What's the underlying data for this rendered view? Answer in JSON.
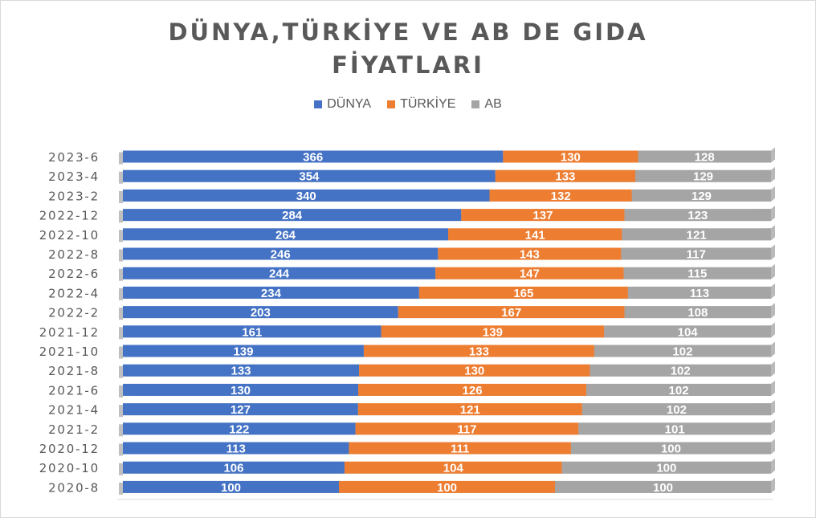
{
  "chart_data": {
    "type": "bar",
    "orientation": "horizontal",
    "stacked": true,
    "title": "DÜNYA,TÜRKİYE  VE AB DE GIDA\nFİYATLARI",
    "categories": [
      "2023-6",
      "2023-4",
      "2023-2",
      "2022-12",
      "2022-10",
      "2022-8",
      "2022-6",
      "2022-4",
      "2022-2",
      "2021-12",
      "2021-10",
      "2021-8",
      "2021-6",
      "2021-4",
      "2021-2",
      "2020-12",
      "2020-10",
      "2020-8"
    ],
    "series": [
      {
        "name": "DÜNYA",
        "color": "#4472c4",
        "values": [
          366,
          354,
          340,
          284,
          264,
          246,
          244,
          234,
          203,
          161,
          139,
          133,
          130,
          127,
          122,
          113,
          106,
          100
        ]
      },
      {
        "name": "TÜRKİYE",
        "color": "#ed7d31",
        "values": [
          130,
          133,
          132,
          137,
          141,
          143,
          147,
          165,
          167,
          139,
          133,
          130,
          126,
          121,
          117,
          111,
          104,
          100
        ]
      },
      {
        "name": "AB",
        "color": "#a5a5a5",
        "values": [
          128,
          129,
          129,
          123,
          121,
          117,
          115,
          113,
          108,
          104,
          102,
          102,
          102,
          102,
          101,
          100,
          100,
          100
        ]
      }
    ],
    "normalized_100_percent": true,
    "data_labels": true,
    "legend_position": "top",
    "grid": false
  }
}
